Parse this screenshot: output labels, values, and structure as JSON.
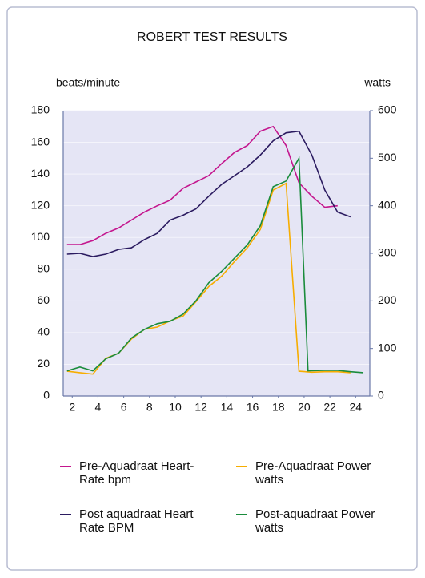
{
  "chart_data": {
    "type": "line",
    "title": "ROBERT TEST RESULTS",
    "y_label": "beats/minute",
    "y2_label": "watts",
    "xlim": [
      1.3,
      25.1
    ],
    "xticks": [
      2,
      4,
      6,
      8,
      10,
      12,
      14,
      16,
      18,
      20,
      22,
      24
    ],
    "ylim": [
      0,
      180
    ],
    "yticks": [
      0,
      20,
      40,
      60,
      80,
      100,
      120,
      140,
      160,
      180
    ],
    "y2lim": [
      0,
      600
    ],
    "y2ticks": [
      0,
      100,
      200,
      300,
      400,
      500,
      600
    ],
    "grid": true,
    "series": [
      {
        "name": "Pre-Aquadraat Heart-Rate bpm",
        "color": "#c4168e",
        "x": [
          1.6,
          2.6,
          3.6,
          4.6,
          5.6,
          6.6,
          7.6,
          8.6,
          9.6,
          10.6,
          11.6,
          12.6,
          13.6,
          14.6,
          15.6,
          16.6,
          17.6,
          18.6,
          19.6,
          20.6,
          21.6,
          22.6
        ],
        "values": [
          95.5,
          95.5,
          98,
          102.6,
          106,
          111,
          116,
          120,
          123.5,
          131,
          135,
          139,
          146.6,
          153.7,
          158,
          167,
          170,
          158,
          134.5,
          126,
          119,
          120
        ]
      },
      {
        "name": "Pre-Aquadraat Power watts",
        "color": "#f7ad00",
        "axis": "y2",
        "x": [
          1.6,
          2.6,
          3.6,
          4.6,
          5.6,
          6.6,
          7.6,
          8.6,
          9.6,
          10.6,
          11.6,
          12.6,
          13.6,
          14.6,
          15.6,
          16.6,
          17.6,
          18.6,
          19.6,
          20.6,
          21.6,
          22.6,
          23.6
        ],
        "values": [
          52,
          49,
          46,
          79,
          90,
          120,
          140,
          145,
          158,
          168,
          198,
          230,
          252,
          283,
          312,
          350,
          433,
          447,
          52,
          50,
          51,
          51,
          49
        ]
      },
      {
        "name": "Post aquadraat Heart Rate BPM",
        "color": "#2b1b60",
        "x": [
          1.6,
          2.6,
          3.6,
          4.6,
          5.6,
          6.6,
          7.6,
          8.6,
          9.6,
          10.6,
          11.6,
          12.6,
          13.6,
          14.6,
          15.6,
          16.6,
          17.6,
          18.6,
          19.6,
          20.6,
          21.6,
          22.6,
          23.6
        ],
        "values": [
          89.5,
          90,
          88,
          89.5,
          92.5,
          93.5,
          98.6,
          102.6,
          111,
          114,
          118,
          126,
          133.5,
          139,
          144.6,
          152,
          161,
          166,
          167,
          152,
          130,
          116,
          113
        ]
      },
      {
        "name": "Post-aquadraat Power watts",
        "color": "#1a8c3c",
        "axis": "y2",
        "x": [
          1.6,
          2.6,
          3.6,
          4.6,
          5.6,
          6.6,
          7.6,
          8.6,
          9.6,
          10.6,
          11.6,
          12.6,
          13.6,
          14.6,
          15.6,
          16.6,
          17.6,
          18.6,
          19.6,
          20.3,
          21.6,
          22.6,
          23.6,
          24.6
        ],
        "values": [
          53,
          61,
          53,
          78,
          90,
          122,
          140,
          152,
          157,
          172,
          200,
          238,
          262,
          290,
          318,
          358,
          440,
          452,
          500,
          53,
          54,
          54,
          51,
          49
        ]
      }
    ]
  }
}
